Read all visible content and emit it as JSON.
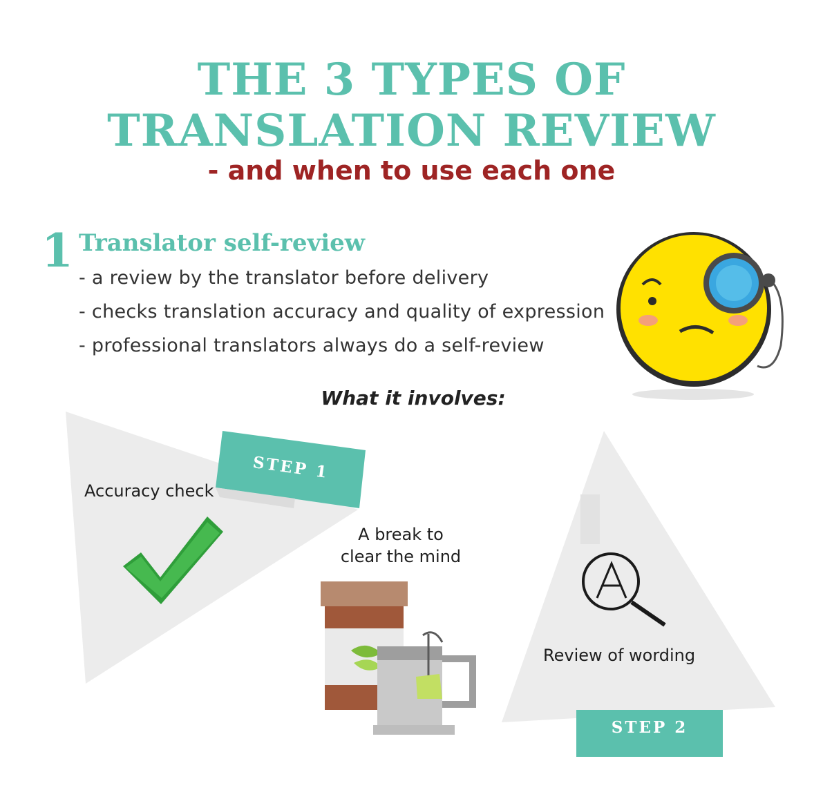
{
  "title": {
    "line1": "THE 3 TYPES OF",
    "line2": "TRANSLATION REVIEW",
    "subtitle": "- and when to use each one"
  },
  "section": {
    "number": "1",
    "heading": "Translator self-review",
    "bullets": [
      "- a review by the translator before delivery",
      "- checks translation accuracy and quality of expression",
      "- professional translators always do a self-review"
    ]
  },
  "involves": "What it involves:",
  "steps": {
    "step1_label": "STEP 1",
    "step2_label": "STEP 2",
    "accuracy": "Accuracy check",
    "break_line1": "A break to",
    "break_line2": "clear the mind",
    "wording": "Review of wording"
  },
  "icons": {
    "emoji": "monocle-face-icon",
    "check": "checkmark-icon",
    "tea": "tea-cup-icon",
    "search": "search-letter-icon"
  },
  "colors": {
    "teal": "#5bc0ad",
    "red": "#9e2424",
    "triangle": "#ececec"
  },
  "search_letter": "A"
}
